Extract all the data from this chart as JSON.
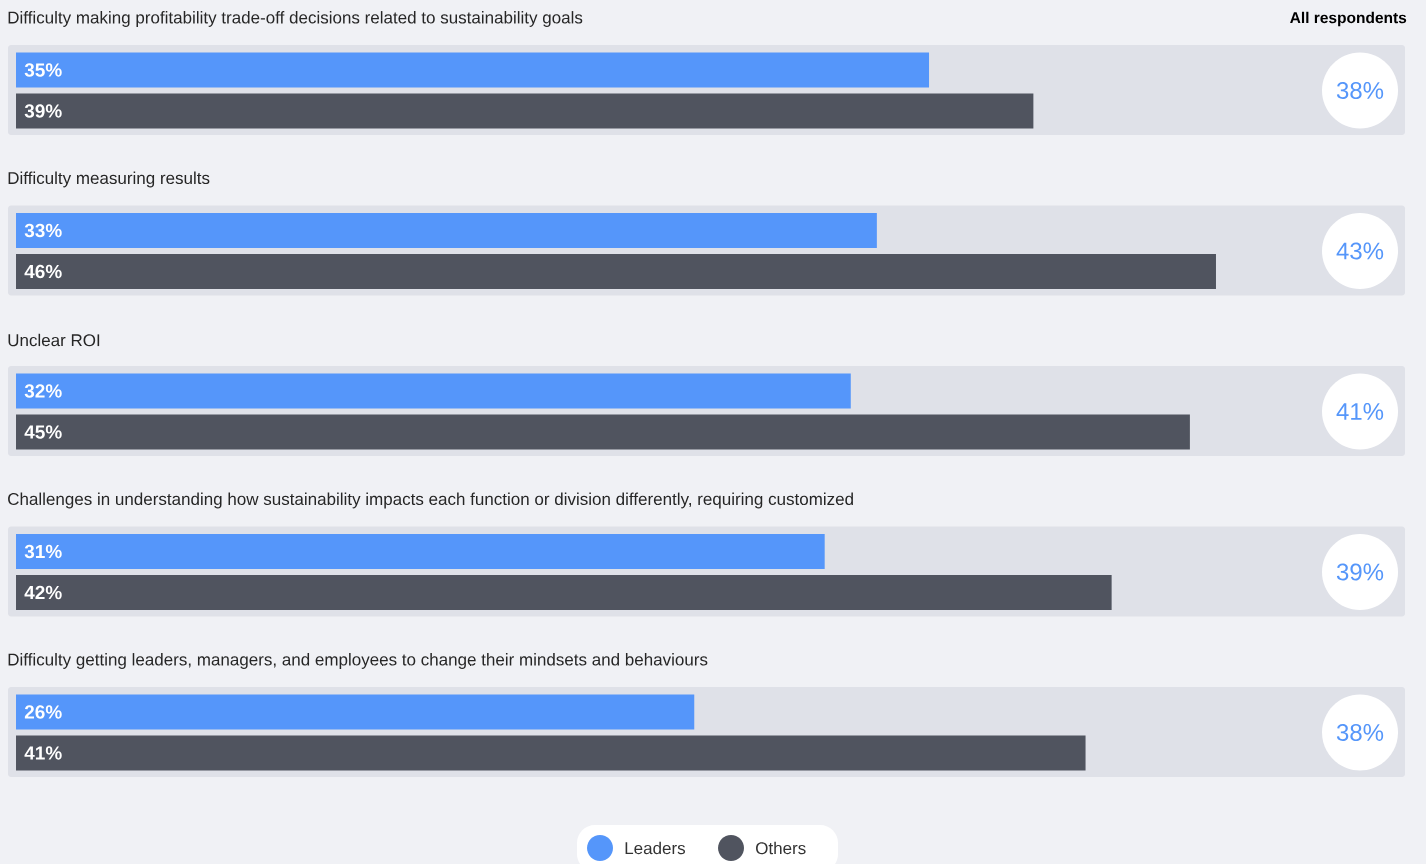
{
  "chart_data": {
    "type": "bar",
    "orientation": "horizontal",
    "categories": [
      "Difficulty making profitability trade-off decisions related to sustainability goals",
      "Difficulty measuring results",
      "Unclear ROI",
      "Challenges in understanding how sustainability impacts each function or division differently, requiring customized",
      "Difficulty getting leaders, managers, and employees to change their mindsets and behaviours"
    ],
    "series": [
      {
        "name": "Leaders",
        "color": "#5596fa",
        "values": [
          35,
          33,
          32,
          31,
          26
        ],
        "value_labels": [
          "35%",
          "33%",
          "32%",
          "31%",
          "26%"
        ]
      },
      {
        "name": "Others",
        "color": "#50545f",
        "values": [
          39,
          46,
          45,
          42,
          41
        ],
        "value_labels": [
          "39%",
          "46%",
          "45%",
          "42%",
          "41%"
        ]
      }
    ],
    "annotations": [
      "All respondents",
      "38%",
      "43%",
      "41%",
      "39%",
      "38%"
    ],
    "legend": "bottom"
  }
}
